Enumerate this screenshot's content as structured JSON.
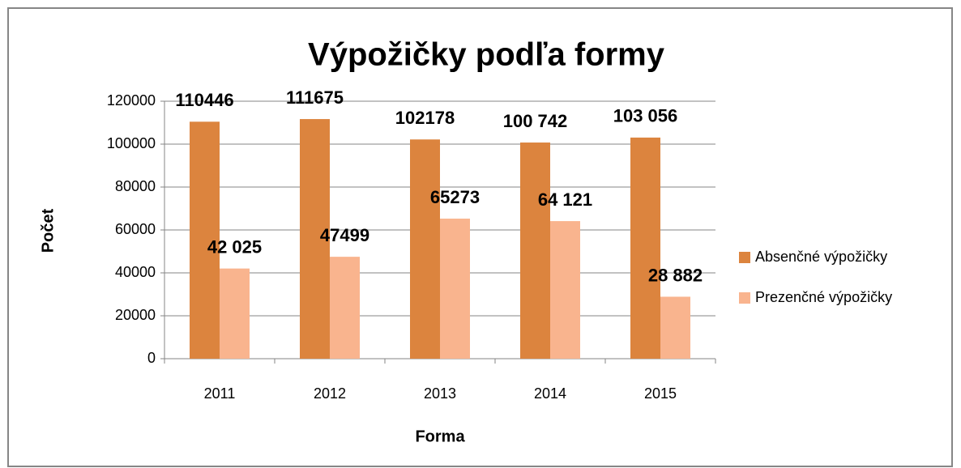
{
  "chart_data": {
    "type": "bar",
    "title": "Výpožičky podľa formy",
    "x_label": "Forma",
    "y_label": "Počet",
    "categories": [
      "2011",
      "2012",
      "2013",
      "2014",
      "2015"
    ],
    "series": [
      {
        "name": "Absenčné výpožičky",
        "color": "#dc843e",
        "values": [
          110446,
          111675,
          102178,
          100742,
          103056
        ],
        "value_labels": [
          "110446",
          "111675",
          "102178",
          "100 742",
          "103 056"
        ]
      },
      {
        "name": "Prezenčné výpožičky",
        "color": "#f9b48e",
        "values": [
          42025,
          47499,
          65273,
          64121,
          28882
        ],
        "value_labels": [
          "42 025",
          "47499",
          "65273",
          "64 121",
          "28 882"
        ]
      }
    ],
    "ylim": [
      0,
      120000
    ],
    "yticks": [
      0,
      20000,
      40000,
      60000,
      80000,
      100000,
      120000
    ],
    "grid": true,
    "legend": "right"
  }
}
